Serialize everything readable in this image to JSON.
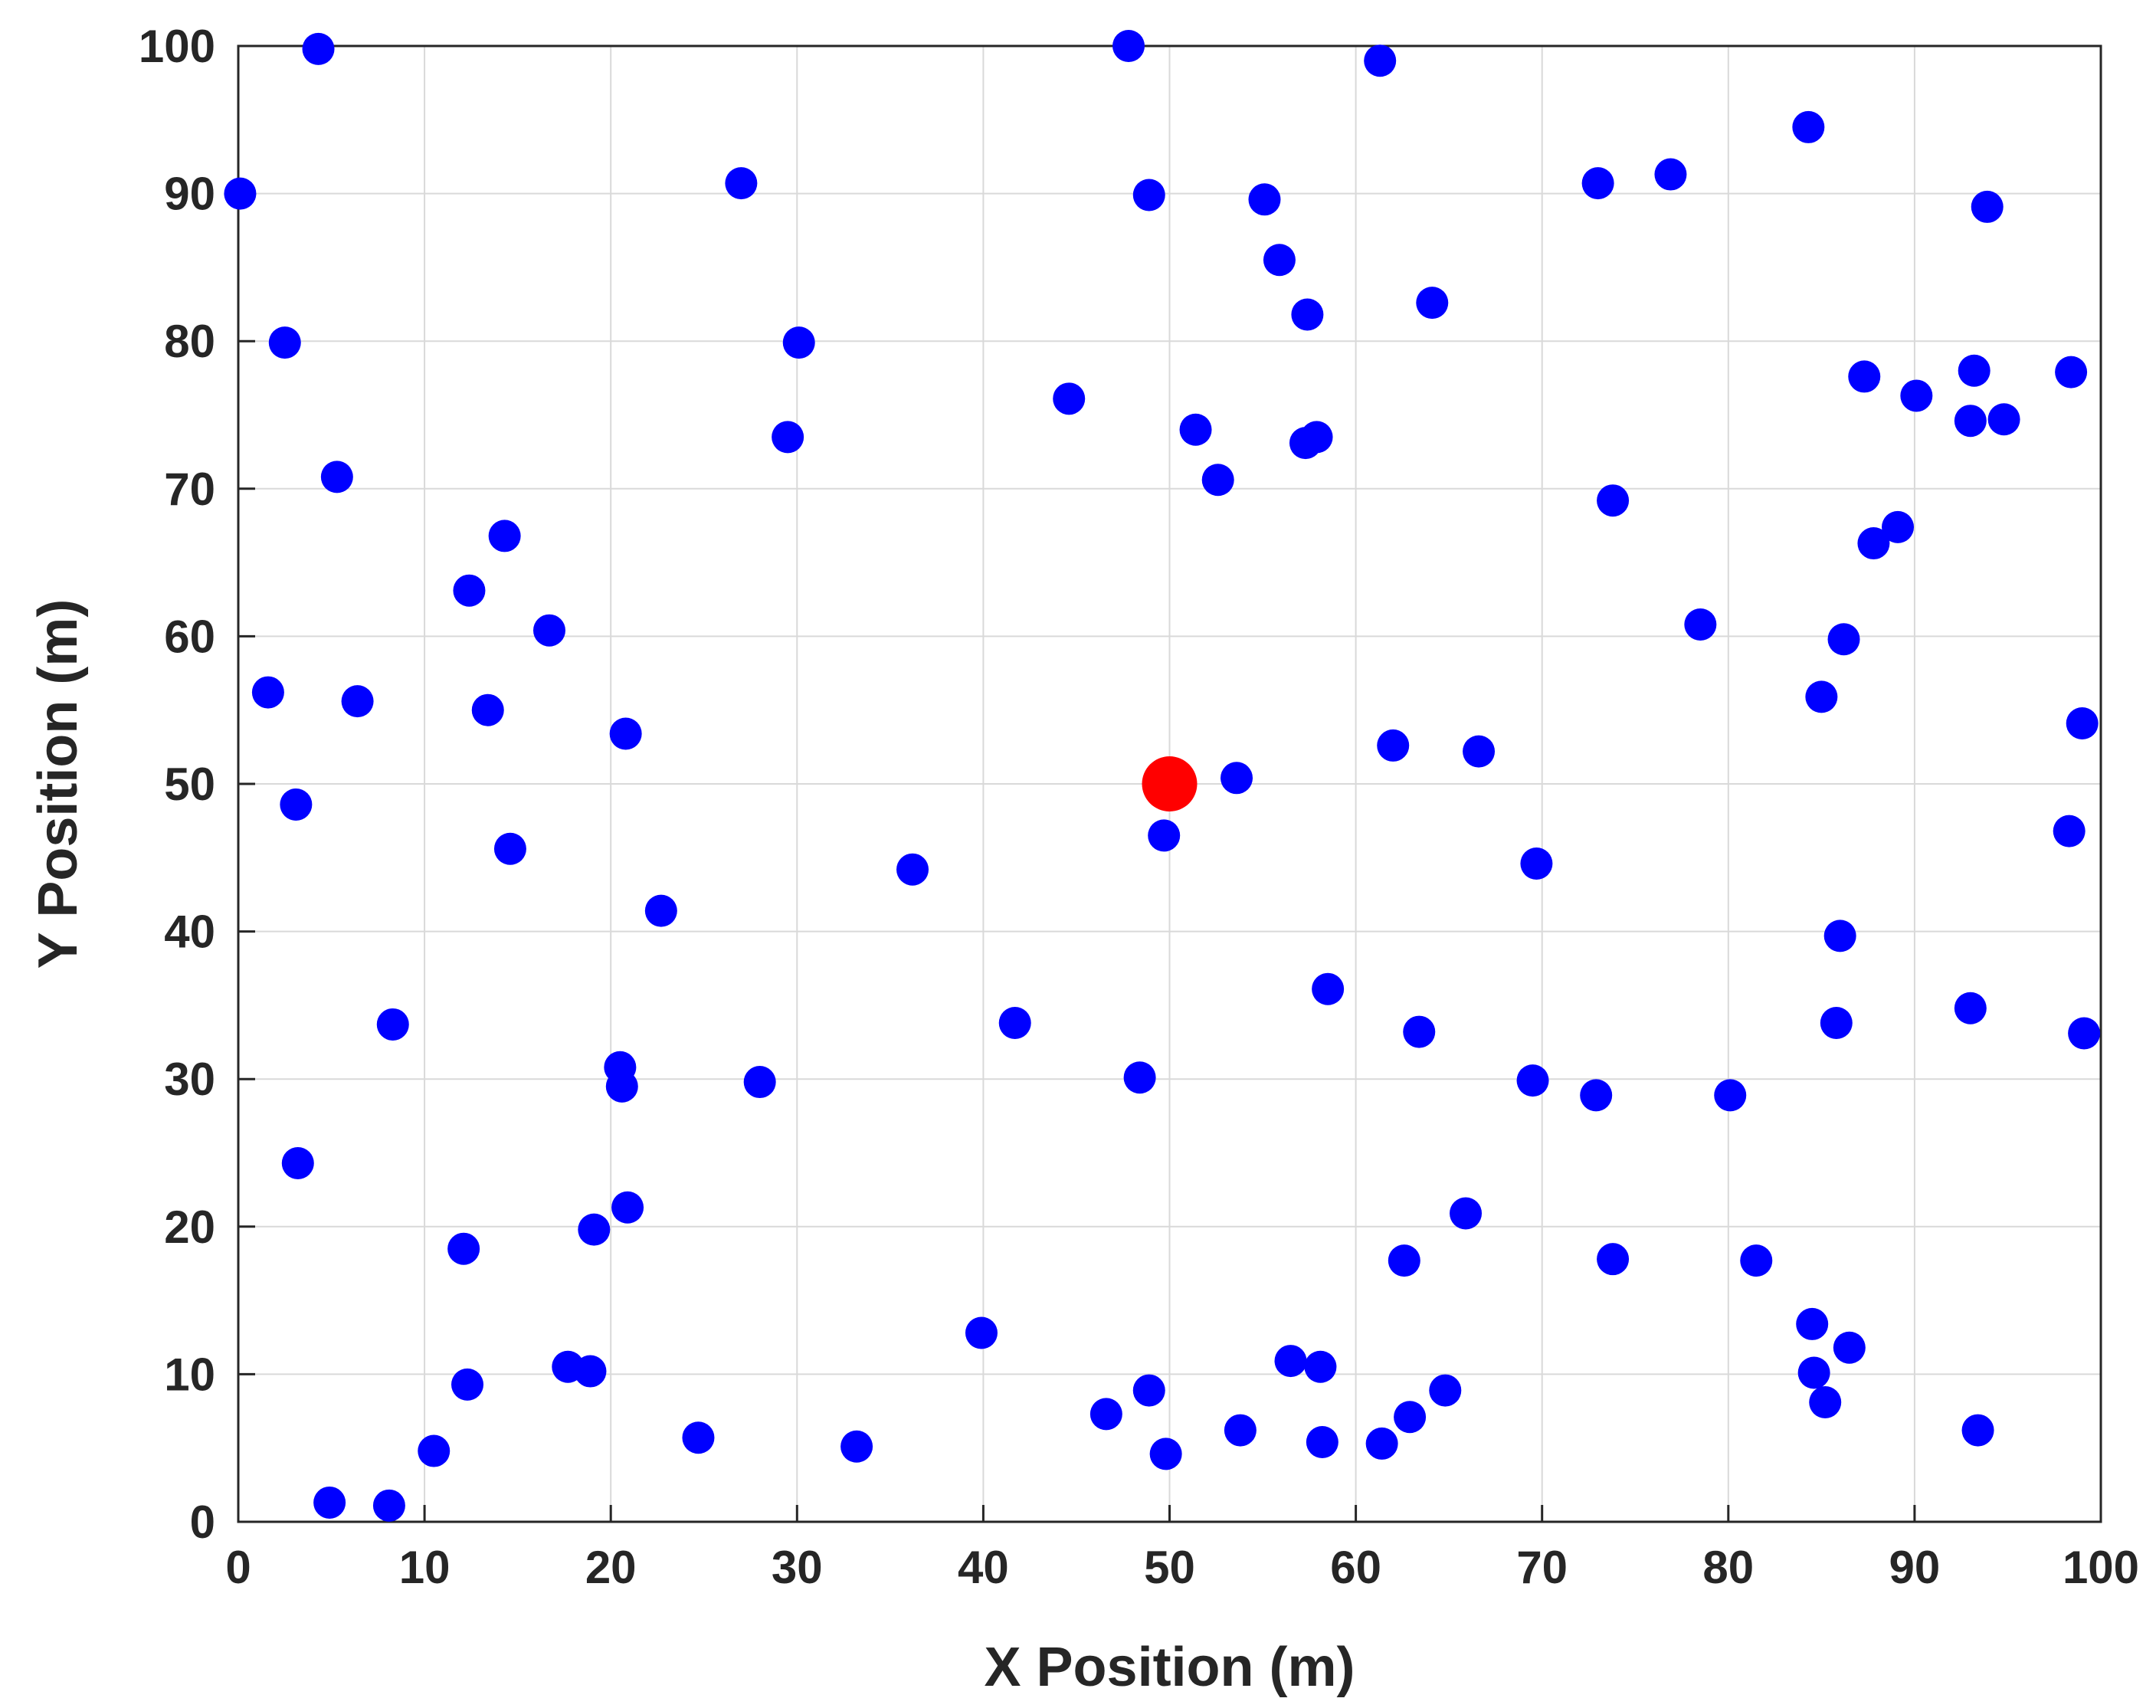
{
  "chart_data": {
    "type": "scatter",
    "title": "",
    "xlabel": "X Position (m)",
    "ylabel": "Y Position (m)",
    "xlim": [
      0,
      100
    ],
    "ylim": [
      0,
      100
    ],
    "xticks": [
      0,
      10,
      20,
      30,
      40,
      50,
      60,
      70,
      80,
      90,
      100
    ],
    "yticks": [
      0,
      10,
      20,
      30,
      40,
      50,
      60,
      70,
      80,
      90,
      100
    ],
    "grid": true,
    "legend": "none",
    "series": [
      {
        "color": "#0000ff",
        "marker": "filled-circle",
        "points": [
          [
            4.3,
            99.8
          ],
          [
            47.8,
            100.0
          ],
          [
            61.3,
            99.0
          ],
          [
            0.1,
            90.0
          ],
          [
            27.0,
            90.7
          ],
          [
            48.9,
            89.9
          ],
          [
            55.1,
            89.6
          ],
          [
            73.0,
            90.7
          ],
          [
            76.9,
            91.3
          ],
          [
            84.3,
            94.5
          ],
          [
            93.9,
            89.1
          ],
          [
            55.9,
            85.5
          ],
          [
            64.1,
            82.6
          ],
          [
            57.4,
            81.8
          ],
          [
            2.5,
            79.9
          ],
          [
            30.1,
            79.9
          ],
          [
            87.3,
            77.6
          ],
          [
            93.2,
            78.0
          ],
          [
            98.4,
            77.9
          ],
          [
            44.6,
            76.1
          ],
          [
            90.1,
            76.3
          ],
          [
            51.4,
            74.0
          ],
          [
            93.0,
            74.6
          ],
          [
            94.8,
            74.7
          ],
          [
            29.5,
            73.5
          ],
          [
            57.3,
            73.1
          ],
          [
            57.9,
            73.5
          ],
          [
            5.3,
            70.8
          ],
          [
            52.6,
            70.6
          ],
          [
            73.8,
            69.2
          ],
          [
            14.3,
            66.8
          ],
          [
            89.1,
            67.4
          ],
          [
            87.8,
            66.3
          ],
          [
            12.4,
            63.1
          ],
          [
            16.7,
            60.4
          ],
          [
            78.5,
            60.8
          ],
          [
            86.2,
            59.8
          ],
          [
            1.6,
            56.2
          ],
          [
            6.4,
            55.6
          ],
          [
            13.4,
            55.0
          ],
          [
            85.0,
            55.9
          ],
          [
            20.8,
            53.4
          ],
          [
            62.0,
            52.6
          ],
          [
            66.6,
            52.2
          ],
          [
            99.0,
            54.1
          ],
          [
            53.6,
            50.4
          ],
          [
            3.1,
            48.6
          ],
          [
            49.7,
            46.5
          ],
          [
            14.6,
            45.6
          ],
          [
            98.3,
            46.8
          ],
          [
            36.2,
            44.2
          ],
          [
            69.7,
            44.6
          ],
          [
            22.7,
            41.4
          ],
          [
            86.0,
            39.7
          ],
          [
            58.5,
            36.1
          ],
          [
            8.3,
            33.7
          ],
          [
            41.7,
            33.8
          ],
          [
            63.4,
            33.2
          ],
          [
            85.8,
            33.8
          ],
          [
            93.0,
            34.8
          ],
          [
            99.1,
            33.1
          ],
          [
            20.5,
            30.8
          ],
          [
            20.6,
            29.5
          ],
          [
            28.0,
            29.8
          ],
          [
            48.4,
            30.1
          ],
          [
            69.5,
            29.9
          ],
          [
            72.9,
            28.9
          ],
          [
            80.1,
            28.9
          ],
          [
            3.2,
            24.3
          ],
          [
            20.9,
            21.3
          ],
          [
            65.9,
            20.9
          ],
          [
            19.1,
            19.8
          ],
          [
            12.1,
            18.5
          ],
          [
            62.6,
            17.7
          ],
          [
            73.8,
            17.8
          ],
          [
            81.5,
            17.7
          ],
          [
            39.9,
            12.8
          ],
          [
            84.5,
            13.4
          ],
          [
            86.5,
            11.8
          ],
          [
            17.7,
            10.5
          ],
          [
            18.9,
            10.2
          ],
          [
            56.5,
            10.9
          ],
          [
            58.1,
            10.5
          ],
          [
            12.3,
            9.3
          ],
          [
            48.9,
            8.9
          ],
          [
            64.8,
            8.9
          ],
          [
            84.6,
            10.1
          ],
          [
            85.2,
            8.1
          ],
          [
            46.6,
            7.3
          ],
          [
            62.9,
            7.1
          ],
          [
            53.8,
            6.2
          ],
          [
            93.4,
            6.2
          ],
          [
            24.7,
            5.7
          ],
          [
            33.2,
            5.1
          ],
          [
            58.2,
            5.4
          ],
          [
            61.4,
            5.3
          ],
          [
            10.5,
            4.8
          ],
          [
            49.8,
            4.6
          ],
          [
            4.9,
            1.3
          ],
          [
            8.1,
            1.1
          ]
        ]
      },
      {
        "color": "#ff0000",
        "marker": "filled-circle",
        "size": "large",
        "points": [
          [
            50.0,
            50.0
          ]
        ]
      }
    ]
  }
}
